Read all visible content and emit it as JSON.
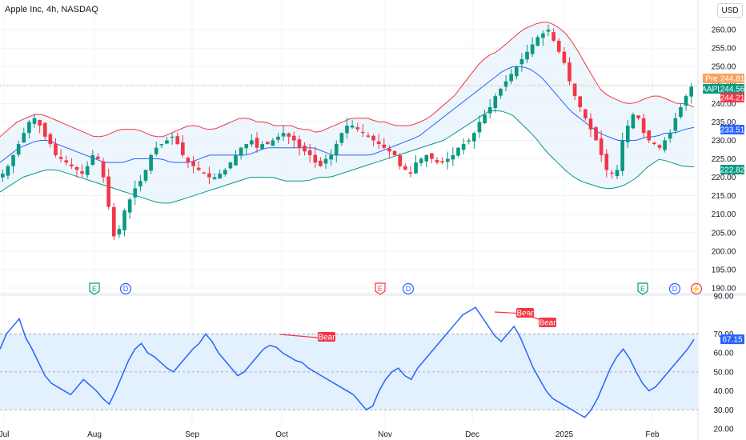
{
  "header": {
    "title": "Apple Inc, 4h, NASDAQ",
    "currency_button": "USD"
  },
  "colors": {
    "up": "#089981",
    "down": "#f23645",
    "ma": "#2962ff",
    "upper": "#f23645",
    "lower": "#089981",
    "band_fill": "#e8f2fc",
    "rsi": "#2962ff",
    "rsi_fill": "#e3f0fd",
    "pre": "#f7a35c",
    "close_tag": "#089981",
    "bear": "#f23645"
  },
  "chart_data": [
    {
      "type": "candlestick",
      "title": "Apple Inc, 4h, NASDAQ",
      "ylim": [
        190,
        265
      ],
      "yticks": [
        "260.00",
        "255.00",
        "250.00",
        "245.00",
        "240.00",
        "235.00",
        "230.00",
        "225.00",
        "220.00",
        "215.00",
        "210.00",
        "205.00",
        "200.00",
        "195.00",
        "190.00"
      ],
      "x_labels": [
        "Jul",
        "Aug",
        "Sep",
        "Oct",
        "Nov",
        "Dec",
        "2025",
        "Feb"
      ],
      "price_tags": [
        {
          "label": "Pre",
          "value": "244.81",
          "color": "#f7a35c"
        },
        {
          "label": "AAPL",
          "value": "244.56",
          "color": "#089981"
        },
        {
          "label": "",
          "value": "244.21",
          "color": "#f23645"
        },
        {
          "label": "",
          "value": "233.51",
          "color": "#2962ff"
        },
        {
          "label": "",
          "value": "222.82",
          "color": "#089981"
        }
      ],
      "close_series": [
        221,
        223,
        226,
        229,
        232,
        235,
        236,
        234,
        231,
        229,
        226,
        225,
        224,
        223,
        222,
        221,
        223,
        226,
        225,
        220,
        212,
        204,
        206,
        211,
        214,
        217,
        219,
        222,
        226,
        228,
        229,
        230,
        231,
        229,
        226,
        224,
        223,
        222,
        221,
        220,
        220,
        221,
        222,
        224,
        226,
        228,
        229,
        230,
        228,
        229,
        229,
        230,
        231,
        232,
        231,
        230,
        228,
        227,
        226,
        224,
        223,
        225,
        226,
        229,
        232,
        234,
        234,
        233,
        232,
        231,
        230,
        229,
        228,
        227,
        226,
        223,
        222,
        221,
        224,
        225,
        226,
        225,
        224,
        224,
        225,
        226,
        228,
        229,
        230,
        232,
        235,
        237,
        239,
        242,
        244,
        246,
        248,
        250,
        252,
        254,
        256,
        258,
        259,
        260,
        257,
        254,
        251,
        246,
        242,
        239,
        236,
        233,
        230,
        226,
        222,
        221,
        222,
        230,
        234,
        237,
        236,
        232,
        230,
        229,
        228,
        230,
        232,
        236,
        239,
        242,
        244.56
      ],
      "upper_band": [
        231,
        233,
        235,
        236,
        237,
        237,
        236,
        235,
        234,
        233,
        232,
        231,
        231,
        232,
        233,
        233,
        233,
        232,
        231,
        231,
        232,
        233,
        234,
        234,
        233,
        233,
        234,
        235,
        236,
        236,
        235,
        235,
        234,
        234,
        234,
        233,
        233,
        232,
        233,
        234,
        235,
        236,
        236,
        236,
        235,
        235,
        234,
        234,
        234,
        235,
        236,
        238,
        240,
        242,
        245,
        248,
        251,
        253,
        254,
        256,
        258,
        260,
        261,
        262,
        262,
        261,
        259,
        256,
        252,
        248,
        244,
        242,
        241,
        240,
        240,
        241,
        242,
        242,
        241,
        240,
        240,
        239
      ],
      "middle_band": [
        224,
        226,
        228,
        229,
        230,
        230,
        229,
        228,
        227,
        226,
        225,
        224,
        224,
        224,
        225,
        225,
        225,
        225,
        224,
        224,
        224,
        225,
        226,
        226,
        226,
        226,
        226,
        227,
        228,
        228,
        228,
        228,
        228,
        228,
        227,
        226,
        226,
        226,
        226,
        226,
        227,
        228,
        229,
        230,
        231,
        233,
        235,
        237,
        239,
        241,
        243,
        245,
        247,
        249,
        250,
        250,
        249,
        247,
        244,
        241,
        238,
        236,
        234,
        232,
        231,
        230,
        230,
        230,
        231,
        231,
        232,
        232,
        233,
        233.51
      ],
      "lower_band": [
        216,
        218,
        220,
        221,
        222,
        222,
        221,
        220,
        219,
        218,
        217,
        216,
        215,
        214,
        213,
        213,
        214,
        215,
        216,
        217,
        218,
        219,
        220,
        220,
        220,
        219,
        219,
        219,
        220,
        220,
        221,
        222,
        223,
        224,
        225,
        226,
        227,
        228,
        229,
        230,
        232,
        234,
        236,
        238,
        238,
        237,
        234,
        231,
        227,
        224,
        221,
        219,
        218,
        217,
        217,
        218,
        220,
        223,
        225,
        224,
        223,
        222.82
      ],
      "events": [
        {
          "type": "E",
          "label": "E",
          "color": "#089981"
        },
        {
          "type": "D",
          "label": "D",
          "color": "#2962ff"
        },
        {
          "type": "E",
          "label": "E",
          "color": "#f23645"
        },
        {
          "type": "D",
          "label": "D",
          "color": "#2962ff"
        },
        {
          "type": "E",
          "label": "E",
          "color": "#089981"
        },
        {
          "type": "D",
          "label": "D",
          "color": "#2962ff"
        },
        {
          "type": "S",
          "label": "⚡",
          "color": "#f23645"
        }
      ]
    },
    {
      "type": "line",
      "name": "RSI",
      "ylim": [
        20,
        90
      ],
      "yticks": [
        "90.00",
        "70.00",
        "60.00",
        "50.00",
        "40.00",
        "30.00",
        "20.00"
      ],
      "reference_levels": [
        70,
        50,
        30
      ],
      "values": [
        62,
        70,
        74,
        78,
        68,
        62,
        55,
        48,
        44,
        42,
        40,
        38,
        42,
        46,
        43,
        40,
        36,
        33,
        40,
        48,
        56,
        62,
        65,
        60,
        58,
        55,
        52,
        50,
        54,
        58,
        62,
        65,
        70,
        66,
        60,
        56,
        52,
        48,
        50,
        54,
        58,
        62,
        64,
        63,
        60,
        58,
        56,
        55,
        52,
        50,
        48,
        46,
        44,
        42,
        40,
        38,
        34,
        30,
        32,
        40,
        46,
        50,
        52,
        48,
        46,
        52,
        56,
        60,
        64,
        68,
        72,
        76,
        80,
        82,
        84,
        79,
        74,
        69,
        66,
        70,
        74,
        68,
        60,
        52,
        46,
        40,
        36,
        34,
        32,
        30,
        28,
        26,
        30,
        36,
        44,
        52,
        58,
        62,
        57,
        50,
        44,
        40,
        42,
        46,
        50,
        54,
        58,
        62,
        67.15
      ],
      "current_value": "67.15",
      "bear_labels": [
        "Bear",
        "Bear",
        "Bear"
      ]
    }
  ]
}
